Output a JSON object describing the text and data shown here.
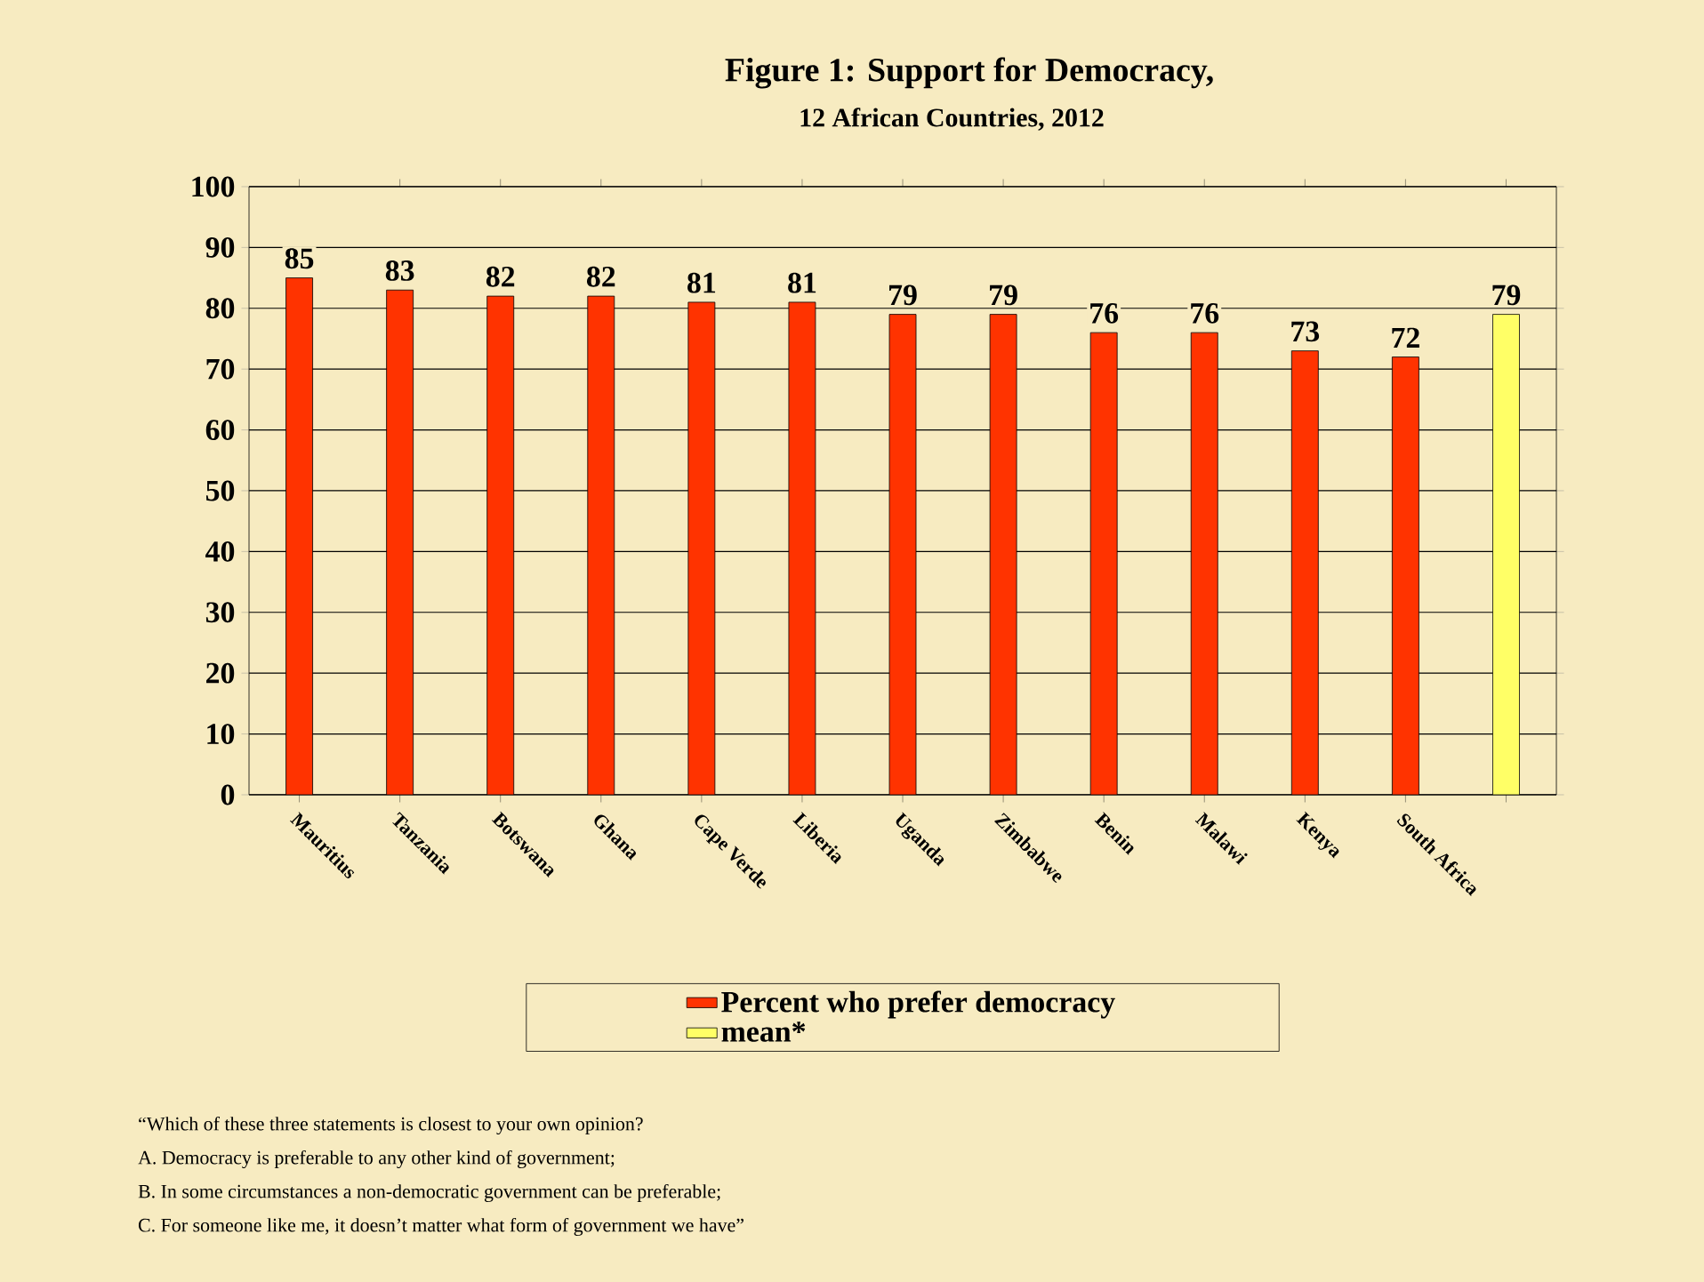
{
  "chart_data": {
    "type": "bar",
    "title": "Figure 1:  Support for Democracy,",
    "subtitle": "12 African Countries, 2012",
    "categories": [
      "Mauritius",
      "Tanzania",
      "Botswana",
      "Ghana",
      "Cape Verde",
      "Liberia",
      "Uganda",
      "Zimbabwe",
      "Benin",
      "Malawi",
      "Kenya",
      "South Africa",
      null
    ],
    "series": [
      {
        "name": "Percent who prefer democracy",
        "color": "#ff3300",
        "values": [
          85,
          83,
          82,
          82,
          81,
          81,
          79,
          79,
          76,
          76,
          73,
          72,
          null
        ]
      },
      {
        "name": "mean*",
        "color": "#ffff66",
        "values": [
          null,
          null,
          null,
          null,
          null,
          null,
          null,
          null,
          null,
          null,
          null,
          null,
          79
        ]
      }
    ],
    "ylim": [
      0,
      100
    ],
    "yticks": [
      0,
      10,
      20,
      30,
      40,
      50,
      60,
      70,
      80,
      90,
      100
    ],
    "grid": "y",
    "legend": "bottom",
    "data_labels": true,
    "annotations": [
      "“Which of these three statements is closest to your own opinion?",
      "A.        Democracy is preferable to any other kind of government;",
      "B.        In some circumstances a non-democratic government can be preferable;",
      "C.        For someone like me, it doesn’t matter what form of government we have”"
    ]
  }
}
